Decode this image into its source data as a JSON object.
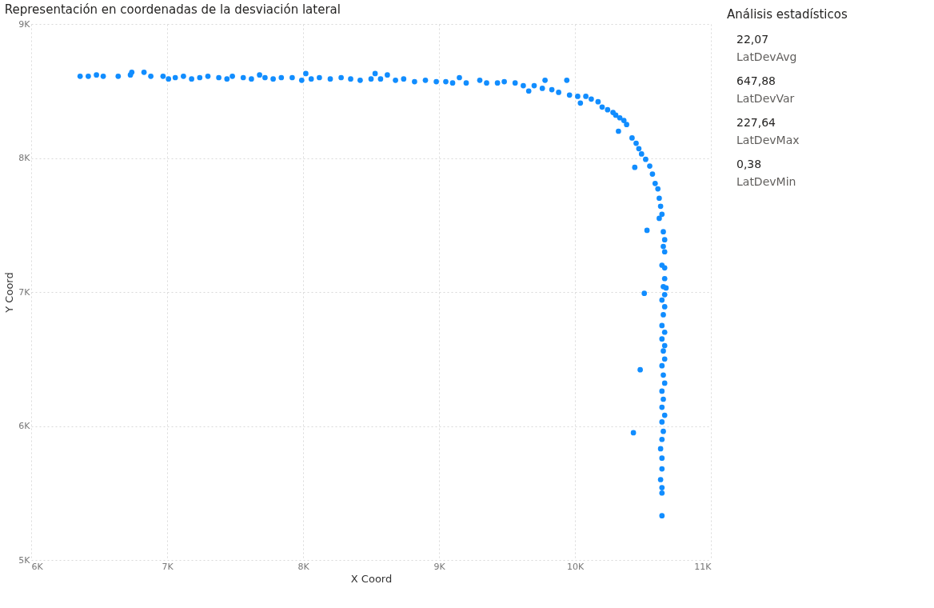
{
  "chart_data": [
    {
      "type": "scatter",
      "title": "Representación en coordenadas de la desviación lateral",
      "xlabel": "X Coord",
      "ylabel": "Y Coord",
      "series": [
        {
          "color": "#118dff",
          "x": [
            6360,
            6420,
            6480,
            6530,
            6640,
            6730,
            6740,
            6830,
            6880,
            6970,
            7010,
            7060,
            7120,
            7180,
            7240,
            7300,
            7380,
            7440,
            7480,
            7560,
            7620,
            7680,
            7720,
            7780,
            7840,
            7920,
            7990,
            8020,
            8060,
            8120,
            8200,
            8280,
            8350,
            8420,
            8500,
            8530,
            8570,
            8620,
            8680,
            8740,
            8820,
            8900,
            8980,
            9050,
            9100,
            9150,
            9200,
            9300,
            9350,
            9430,
            9480,
            9560,
            9620,
            9660,
            9700,
            9760,
            9780,
            9830,
            9880,
            9940,
            9960,
            10020,
            10040,
            10080,
            10120,
            10170,
            10200,
            10240,
            10280,
            10300,
            10330,
            10360,
            10320,
            10380,
            10420,
            10450,
            10470,
            10490,
            10440,
            10520,
            10550,
            10570,
            10590,
            10610,
            10530,
            10620,
            10630,
            10640,
            10620,
            10650,
            10660,
            10650,
            10660,
            10640,
            10660,
            10660,
            10650,
            10670,
            10660,
            10510,
            10640,
            10660,
            10650,
            10640,
            10660,
            10640,
            10660,
            10650,
            10660,
            10640,
            10480,
            10650,
            10660,
            10640,
            10650,
            10640,
            10660,
            10640,
            10650,
            10430,
            10640,
            10630,
            10640,
            10640,
            10630,
            10640,
            10640,
            10640
          ],
          "values": [
            8610,
            8610,
            8620,
            8610,
            8610,
            8620,
            8640,
            8640,
            8610,
            8610,
            8590,
            8600,
            8610,
            8590,
            8600,
            8610,
            8600,
            8590,
            8610,
            8600,
            8590,
            8620,
            8600,
            8590,
            8600,
            8600,
            8580,
            8630,
            8590,
            8600,
            8590,
            8600,
            8590,
            8580,
            8590,
            8630,
            8590,
            8620,
            8580,
            8590,
            8570,
            8580,
            8570,
            8570,
            8560,
            8600,
            8560,
            8580,
            8560,
            8560,
            8570,
            8560,
            8540,
            8500,
            8540,
            8520,
            8580,
            8510,
            8490,
            8580,
            8470,
            8460,
            8410,
            8460,
            8440,
            8420,
            8380,
            8360,
            8340,
            8320,
            8300,
            8280,
            8200,
            8250,
            8150,
            8110,
            8070,
            8030,
            7930,
            7990,
            7940,
            7880,
            7810,
            7770,
            7460,
            7700,
            7640,
            7580,
            7550,
            7450,
            7390,
            7340,
            7300,
            7200,
            7180,
            7100,
            7040,
            7030,
            6980,
            6990,
            6940,
            6890,
            6830,
            6750,
            6700,
            6650,
            6600,
            6560,
            6500,
            6450,
            6420,
            6380,
            6320,
            6260,
            6200,
            6140,
            6080,
            6030,
            5960,
            5950,
            5900,
            5830,
            5760,
            5680,
            5600,
            5540,
            5500,
            5330
          ]
        }
      ],
      "xlim": [
        6000,
        11000
      ],
      "ylim": [
        5000,
        9000
      ],
      "xticks": [
        {
          "value": 6000,
          "label": "6K"
        },
        {
          "value": 7000,
          "label": "7K"
        },
        {
          "value": 8000,
          "label": "8K"
        },
        {
          "value": 9000,
          "label": "9K"
        },
        {
          "value": 10000,
          "label": "10K"
        },
        {
          "value": 11000,
          "label": "11K"
        }
      ],
      "yticks": [
        {
          "value": 5000,
          "label": "5K"
        },
        {
          "value": 6000,
          "label": "6K"
        },
        {
          "value": 7000,
          "label": "7K"
        },
        {
          "value": 8000,
          "label": "8K"
        },
        {
          "value": 9000,
          "label": "9K"
        }
      ],
      "grid": true,
      "marker": "circle",
      "legend": false
    },
    {
      "type": "other",
      "title": "Análisis estadísticos",
      "annotations": [
        "22,07",
        "LatDevAvg",
        "647,88",
        "LatDevVar",
        "227,64",
        "LatDevMax",
        "0,38",
        "LatDevMin"
      ]
    }
  ]
}
